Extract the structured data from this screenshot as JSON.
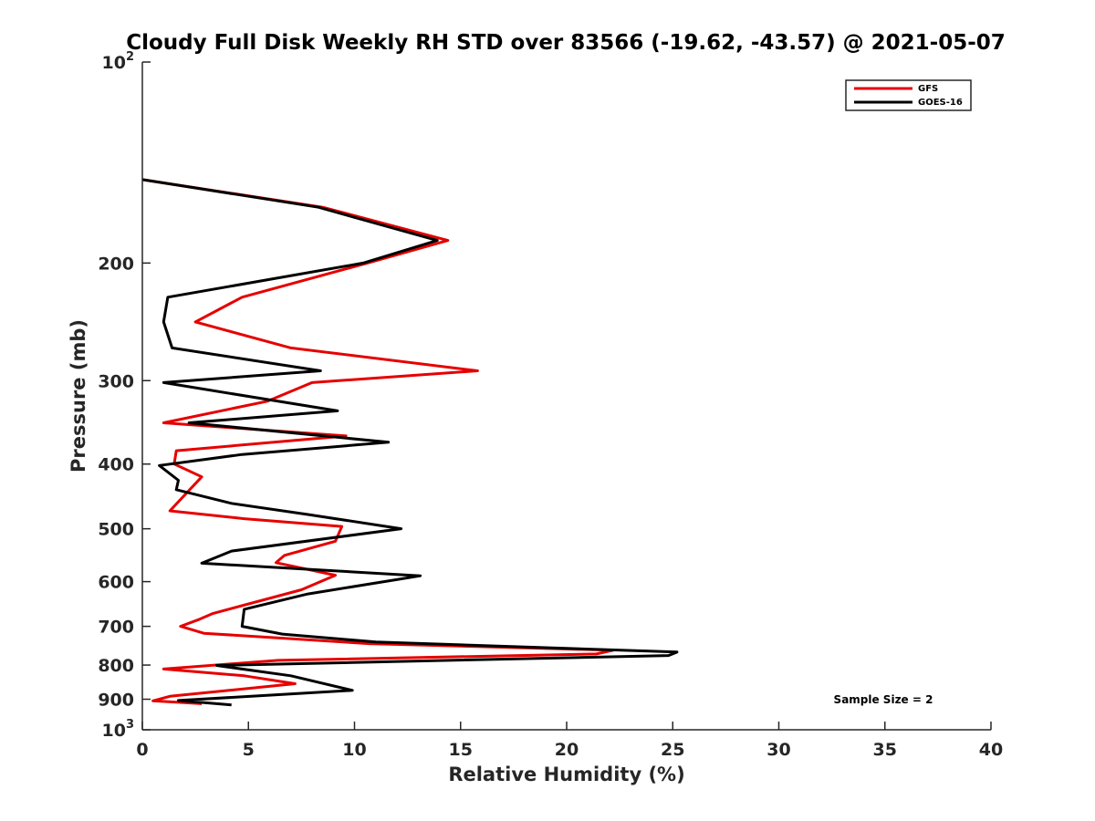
{
  "chart_data": {
    "type": "line",
    "title": "Cloudy Full Disk Weekly RH STD over 83566 (-19.62, -43.57) @ 2021-05-07",
    "xlabel": "Relative Humidity (%)",
    "ylabel": "Pressure (mb)",
    "xlim": [
      0,
      40
    ],
    "ylim": [
      100,
      1000
    ],
    "yscale": "log",
    "y_reversed": true,
    "xticks": [
      "0",
      "5",
      "10",
      "15",
      "20",
      "25",
      "30",
      "35",
      "40"
    ],
    "yticks": [
      {
        "value": 100,
        "base": "10",
        "exp": "2"
      },
      {
        "value": 200,
        "base": "200",
        "exp": ""
      },
      {
        "value": 300,
        "base": "300",
        "exp": ""
      },
      {
        "value": 400,
        "base": "400",
        "exp": ""
      },
      {
        "value": 500,
        "base": "500",
        "exp": ""
      },
      {
        "value": 600,
        "base": "600",
        "exp": ""
      },
      {
        "value": 700,
        "base": "700",
        "exp": ""
      },
      {
        "value": 800,
        "base": "800",
        "exp": ""
      },
      {
        "value": 900,
        "base": "900",
        "exp": ""
      },
      {
        "value": 1000,
        "base": "10",
        "exp": "3"
      }
    ],
    "grid": false,
    "legend": {
      "placement": "top-right"
    },
    "annotation": "Sample Size = 2",
    "series": [
      {
        "name": "GFS",
        "color": "#e60000",
        "points": [
          [
            0.0,
            150
          ],
          [
            8.5,
            165
          ],
          [
            14.4,
            185
          ],
          [
            10.6,
            200
          ],
          [
            4.7,
            225
          ],
          [
            2.5,
            245
          ],
          [
            7.0,
            268
          ],
          [
            15.8,
            290
          ],
          [
            8.0,
            302
          ],
          [
            5.9,
            322
          ],
          [
            1.0,
            347
          ],
          [
            9.6,
            363
          ],
          [
            1.6,
            382
          ],
          [
            1.5,
            400
          ],
          [
            2.8,
            418
          ],
          [
            1.3,
            470
          ],
          [
            4.8,
            483
          ],
          [
            9.4,
            496
          ],
          [
            9.1,
            522
          ],
          [
            6.7,
            548
          ],
          [
            6.3,
            562
          ],
          [
            9.1,
            587
          ],
          [
            7.5,
            617
          ],
          [
            3.3,
            670
          ],
          [
            2.7,
            683
          ],
          [
            1.8,
            700
          ],
          [
            2.9,
            717
          ],
          [
            10.7,
            743
          ],
          [
            22.2,
            760
          ],
          [
            21.4,
            770
          ],
          [
            6.4,
            787
          ],
          [
            1.0,
            811
          ],
          [
            4.8,
            830
          ],
          [
            7.2,
            853
          ],
          [
            1.3,
            891
          ],
          [
            0.5,
            905
          ],
          [
            2.8,
            914
          ]
        ]
      },
      {
        "name": "GOES-16",
        "color": "#000000",
        "points": [
          [
            0.0,
            150
          ],
          [
            8.3,
            165
          ],
          [
            13.9,
            185
          ],
          [
            10.4,
            200
          ],
          [
            1.2,
            225
          ],
          [
            1.0,
            245
          ],
          [
            1.4,
            268
          ],
          [
            8.4,
            290
          ],
          [
            1.0,
            302
          ],
          [
            9.2,
            333
          ],
          [
            2.2,
            347
          ],
          [
            11.6,
            371
          ],
          [
            4.7,
            387
          ],
          [
            0.8,
            402
          ],
          [
            1.7,
            423
          ],
          [
            1.6,
            437
          ],
          [
            4.2,
            458
          ],
          [
            7.8,
            476
          ],
          [
            12.2,
            500
          ],
          [
            4.2,
            540
          ],
          [
            2.8,
            563
          ],
          [
            13.1,
            588
          ],
          [
            7.8,
            626
          ],
          [
            4.8,
            660
          ],
          [
            4.7,
            700
          ],
          [
            6.6,
            719
          ],
          [
            11.0,
            739
          ],
          [
            25.2,
            765
          ],
          [
            24.8,
            774
          ],
          [
            3.5,
            801
          ],
          [
            7.0,
            830
          ],
          [
            9.9,
            873
          ],
          [
            1.7,
            904
          ],
          [
            4.2,
            918
          ]
        ]
      }
    ]
  }
}
